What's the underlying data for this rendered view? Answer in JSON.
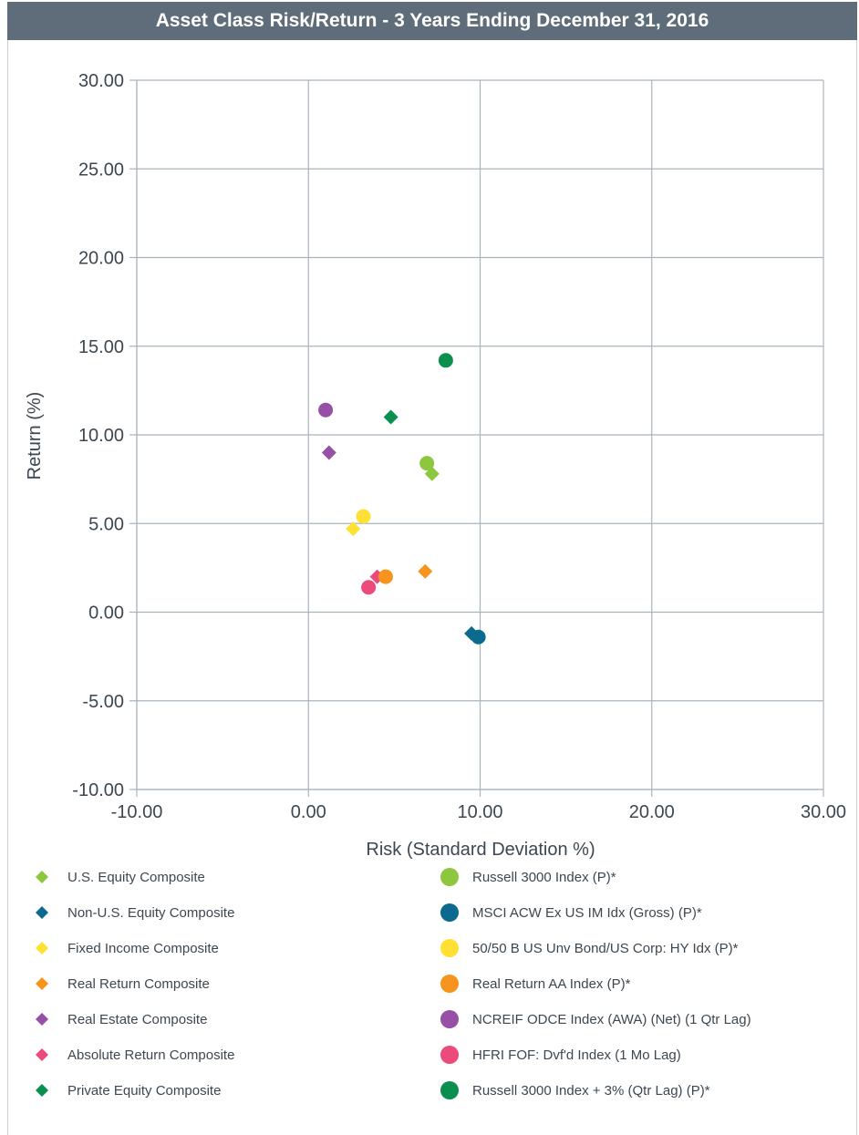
{
  "chart_data": {
    "type": "scatter",
    "title": "Asset Class Risk/Return - 3 Years Ending December 31, 2016",
    "xlabel": "Risk (Standard Deviation %)",
    "ylabel": "Return (%)",
    "xlim": [
      -10,
      30
    ],
    "ylim": [
      -10,
      30
    ],
    "x_ticks": [
      "-10.00",
      "0.00",
      "10.00",
      "20.00",
      "30.00"
    ],
    "y_ticks": [
      "30.00",
      "25.00",
      "20.00",
      "15.00",
      "10.00",
      "5.00",
      "0.00",
      "-5.00",
      "-10.00"
    ],
    "grid": true,
    "legend_position": "bottom",
    "series": [
      {
        "name": "U.S. Equity Composite",
        "marker": "diamond",
        "color": "#8dc63f",
        "x": 7.2,
        "y": 7.8
      },
      {
        "name": "Russell 3000 Index (P)*",
        "marker": "circle",
        "color": "#8dc63f",
        "x": 6.9,
        "y": 8.4
      },
      {
        "name": "Non-U.S. Equity Composite",
        "marker": "diamond",
        "color": "#0b6a8e",
        "x": 9.5,
        "y": -1.2
      },
      {
        "name": "MSCI ACW Ex US IM Idx (Gross) (P)*",
        "marker": "circle",
        "color": "#0b6a8e",
        "x": 9.9,
        "y": -1.4
      },
      {
        "name": "Fixed Income Composite",
        "marker": "diamond",
        "color": "#ffe033",
        "x": 2.6,
        "y": 4.7
      },
      {
        "name": "50/50 B US Unv Bond/US Corp: HY Idx (P)*",
        "marker": "circle",
        "color": "#ffe033",
        "x": 3.2,
        "y": 5.4
      },
      {
        "name": "Real Return Composite",
        "marker": "diamond",
        "color": "#f7941d",
        "x": 6.8,
        "y": 2.3
      },
      {
        "name": "Real Return AA Index (P)*",
        "marker": "circle",
        "color": "#f7941d",
        "x": 4.5,
        "y": 2.0
      },
      {
        "name": "Real Estate Composite",
        "marker": "diamond",
        "color": "#9650a5",
        "x": 1.2,
        "y": 9.0
      },
      {
        "name": "NCREIF ODCE Index (AWA) (Net) (1 Qtr Lag)",
        "marker": "circle",
        "color": "#9650a5",
        "x": 1.0,
        "y": 11.4
      },
      {
        "name": "Absolute Return Composite",
        "marker": "diamond",
        "color": "#ec4a7b",
        "x": 4.0,
        "y": 2.0
      },
      {
        "name": "HFRI FOF: Dvf'd Index (1 Mo Lag)",
        "marker": "circle",
        "color": "#ec4a7b",
        "x": 3.5,
        "y": 1.4
      },
      {
        "name": "Private Equity Composite",
        "marker": "diamond",
        "color": "#0b8f4f",
        "x": 4.8,
        "y": 11.0
      },
      {
        "name": "Russell 3000 Index + 3% (Qtr Lag) (P)*",
        "marker": "circle",
        "color": "#0b8f4f",
        "x": 8.0,
        "y": 14.2
      }
    ]
  }
}
